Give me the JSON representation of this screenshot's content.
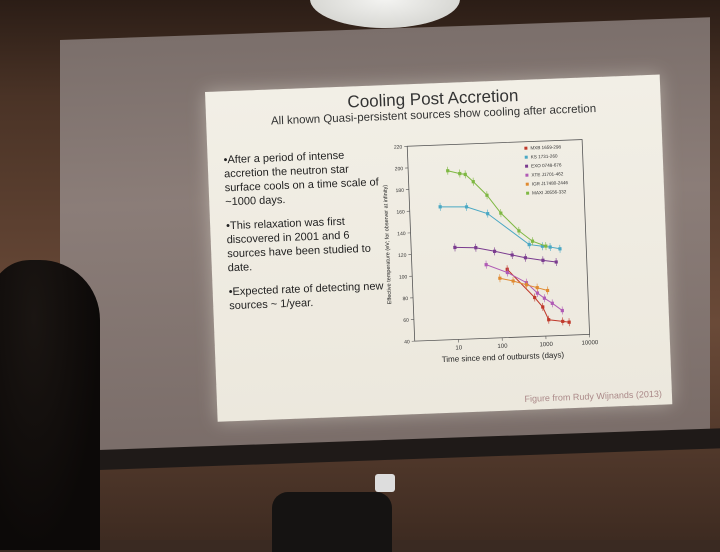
{
  "slide": {
    "title": "Cooling Post Accretion",
    "subtitle": "All known Quasi-persistent sources show cooling after accretion",
    "bullets": [
      "•After a period of intense accretion the neutron star surface cools on a time scale of ~1000 days.",
      "•This relaxation was first discovered in 2001 and 6 sources have been studied to date.",
      "•Expected rate of detecting new sources ~ 1/year."
    ],
    "credit": "Figure from Rudy Wijnands (2013)"
  },
  "chart_data": {
    "type": "scatter",
    "xlabel": "Time since end of outbursts (days)",
    "ylabel": "Effective temperature (eV; for observer at infinity)",
    "xscale": "log",
    "xlim": [
      1,
      10000
    ],
    "ylim": [
      40,
      220
    ],
    "xticks": [
      "10",
      "100",
      "1000",
      "10000"
    ],
    "yticks": [
      "40",
      "60",
      "80",
      "100",
      "120",
      "140",
      "160",
      "180",
      "200",
      "220"
    ],
    "legend_position": "top-right",
    "series": [
      {
        "name": "MXB 1659-298",
        "color": "#c0392b",
        "marker": "square",
        "x": [
          150,
          600,
          900,
          1200,
          2500,
          3500
        ],
        "y": [
          103,
          76,
          67,
          55,
          53,
          52
        ]
      },
      {
        "name": "KS 1731-260",
        "color": "#4aa8c4",
        "marker": "diamond",
        "x": [
          5,
          20,
          60,
          500,
          1000,
          1500,
          2500
        ],
        "y": [
          163,
          162,
          155,
          125,
          123,
          122,
          120
        ]
      },
      {
        "name": "EXO 0748-676",
        "color": "#7a3b8f",
        "marker": "circle",
        "x": [
          10,
          30,
          80,
          200,
          400,
          1000,
          2000
        ],
        "y": [
          125,
          124,
          120,
          116,
          113,
          110,
          108
        ]
      },
      {
        "name": "XTE J1701-462",
        "color": "#b05bb5",
        "marker": "diamond",
        "x": [
          50,
          150,
          400,
          700,
          1000,
          1500,
          2500
        ],
        "y": [
          108,
          100,
          90,
          80,
          75,
          70,
          63
        ]
      },
      {
        "name": "IGR J17480-2446",
        "color": "#e08a30",
        "marker": "circle",
        "x": [
          100,
          200,
          400,
          700,
          1200
        ],
        "y": [
          95,
          92,
          88,
          85,
          82
        ]
      },
      {
        "name": "MAXI J0556-332",
        "color": "#7fb843",
        "marker": "triangle",
        "x": [
          8,
          15,
          20,
          30,
          60,
          120,
          300,
          600,
          1200
        ],
        "y": [
          196,
          193,
          192,
          185,
          172,
          155,
          138,
          128,
          123
        ]
      }
    ]
  }
}
